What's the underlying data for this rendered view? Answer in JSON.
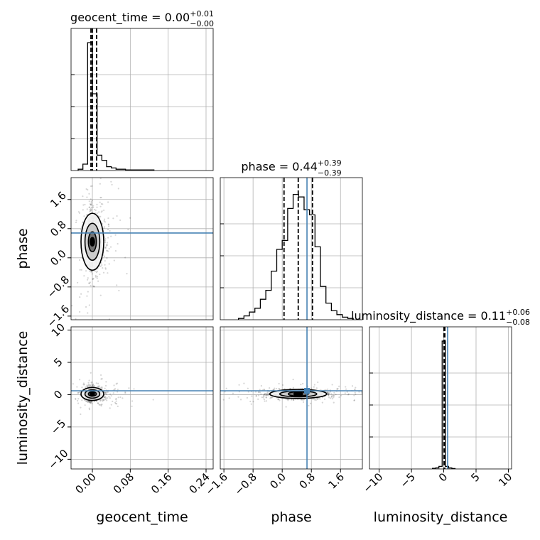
{
  "chart_data": {
    "type": "corner",
    "truth_color": "#4682b4",
    "parameters": [
      {
        "name": "geocent_time",
        "axis_label": "geocent_time",
        "title": {
          "prefix": "geocent_time = ",
          "median": "0.00",
          "plus": "+0.01",
          "minus": "−0.00"
        },
        "range": [
          -0.045,
          0.255
        ],
        "ticks": [
          0.0,
          0.08,
          0.16,
          0.24
        ],
        "tick_labels": [
          "0.00",
          "0.08",
          "0.16",
          "0.24"
        ],
        "quantiles": [
          -0.003,
          0.0,
          0.009
        ],
        "truth": null,
        "hist": {
          "edges": [
            -0.03,
            -0.02,
            -0.01,
            0.0,
            0.01,
            0.02,
            0.03,
            0.04,
            0.05,
            0.06,
            0.07,
            0.08,
            0.09,
            0.1,
            0.11,
            0.12,
            0.13
          ],
          "heights": [
            0.01,
            0.05,
            1.0,
            0.6,
            0.12,
            0.08,
            0.03,
            0.02,
            0.01,
            0.01,
            0.005,
            0.005,
            0.005,
            0.005,
            0.005,
            0.005
          ]
        }
      },
      {
        "name": "phase",
        "axis_label": "phase",
        "title": {
          "prefix": "phase = ",
          "median": "0.44",
          "plus": "+0.39",
          "minus": "−0.39"
        },
        "range": [
          -1.7,
          2.2
        ],
        "ticks": [
          -1.6,
          -0.8,
          0.0,
          0.8,
          1.6
        ],
        "tick_labels": [
          "−1.6",
          "−0.8",
          "0.0",
          "0.8",
          "1.6"
        ],
        "quantiles": [
          0.05,
          0.44,
          0.83
        ],
        "truth": 0.68,
        "hist": {
          "edges": [
            -1.2,
            -1.05,
            -0.9,
            -0.75,
            -0.6,
            -0.45,
            -0.3,
            -0.15,
            0.0,
            0.15,
            0.3,
            0.45,
            0.6,
            0.75,
            0.9,
            1.05,
            1.2,
            1.35,
            1.5,
            1.65,
            1.8,
            1.95
          ],
          "heights": [
            0.01,
            0.03,
            0.06,
            0.09,
            0.16,
            0.23,
            0.38,
            0.55,
            0.62,
            0.87,
            0.98,
            0.96,
            0.86,
            0.82,
            0.57,
            0.26,
            0.13,
            0.07,
            0.04,
            0.02,
            0.01
          ]
        }
      },
      {
        "name": "luminosity_distance",
        "axis_label": "luminosity_distance",
        "title": {
          "prefix": "luminosity_distance = ",
          "median": "0.11",
          "plus": "+0.06",
          "minus": "−0.08"
        },
        "range": [
          -11.5,
          10.5
        ],
        "ticks": [
          -10,
          -5,
          0,
          5,
          10
        ],
        "tick_labels": [
          "−10",
          "−5",
          "0",
          "5",
          "10"
        ],
        "quantiles": [
          0.03,
          0.11,
          0.17
        ],
        "truth": 0.6,
        "hist": {
          "edges": [
            -1.75,
            -1.25,
            -0.75,
            -0.25,
            0.25,
            0.75,
            1.25,
            1.75
          ],
          "heights": [
            0.005,
            0.008,
            0.02,
            1.0,
            0.02,
            0.008,
            0.003
          ]
        }
      }
    ],
    "pairs": [
      {
        "x": "geocent_time",
        "y": "phase",
        "center": [
          0.0,
          0.44
        ],
        "spread": [
          0.012,
          0.39
        ],
        "truth_y": 0.68
      },
      {
        "x": "geocent_time",
        "y": "luminosity_distance",
        "center": [
          0.0,
          0.11
        ],
        "spread": [
          0.012,
          0.5
        ],
        "truth_y": 0.6
      },
      {
        "x": "phase",
        "y": "luminosity_distance",
        "center": [
          0.44,
          0.11
        ],
        "spread": [
          0.39,
          0.35
        ],
        "truth_x": 0.68,
        "truth_y": 0.6
      }
    ]
  }
}
